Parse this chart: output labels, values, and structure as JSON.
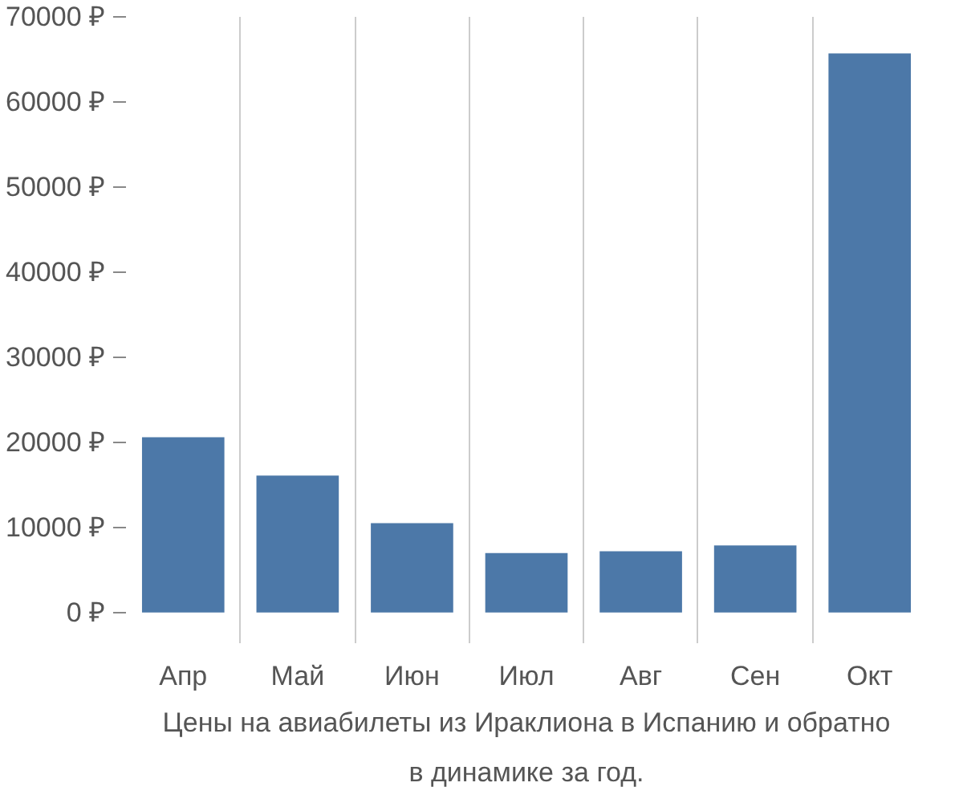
{
  "chart_data": {
    "type": "bar",
    "categories": [
      "Апр",
      "Май",
      "Июн",
      "Июл",
      "Авг",
      "Сен",
      "Окт"
    ],
    "values": [
      20600,
      16100,
      10500,
      7000,
      7200,
      7900,
      65700
    ],
    "color": "#4c78a8",
    "ylim": [
      -3600,
      70000
    ],
    "yticks": [
      {
        "value": 0,
        "label": "0 ₽"
      },
      {
        "value": 10000,
        "label": "10000 ₽"
      },
      {
        "value": 20000,
        "label": "20000 ₽"
      },
      {
        "value": 30000,
        "label": "30000 ₽"
      },
      {
        "value": 40000,
        "label": "40000 ₽"
      },
      {
        "value": 50000,
        "label": "50000 ₽"
      },
      {
        "value": 60000,
        "label": "60000 ₽"
      },
      {
        "value": 70000,
        "label": "70000 ₽"
      }
    ],
    "grid": "x",
    "annotations": [
      "Цены на авиабилеты из Ираклиона в Испанию и обратно",
      "в динамике за год."
    ]
  }
}
